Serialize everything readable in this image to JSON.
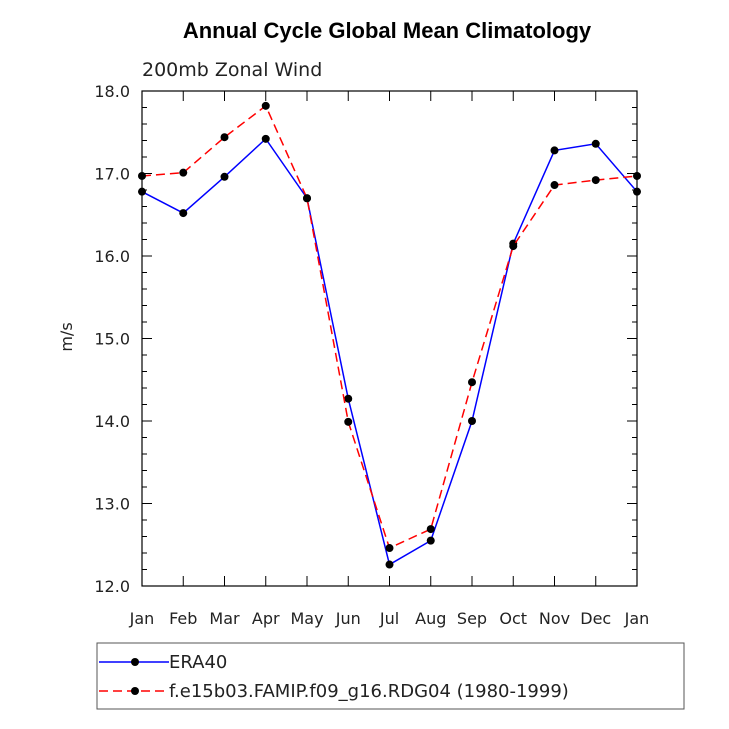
{
  "chart_data": {
    "type": "line",
    "title": "Annual Cycle Global Mean Climatology",
    "subtitle": "200mb Zonal Wind",
    "xlabel": "",
    "ylabel": "m/s",
    "categories": [
      "Jan",
      "Feb",
      "Mar",
      "Apr",
      "May",
      "Jun",
      "Jul",
      "Aug",
      "Sep",
      "Oct",
      "Nov",
      "Dec",
      "Jan"
    ],
    "ylim": [
      12.0,
      18.0
    ],
    "yticks": [
      "12.0",
      "13.0",
      "14.0",
      "15.0",
      "16.0",
      "17.0",
      "18.0"
    ],
    "grid": false,
    "legend_placement": "bottom",
    "series": [
      {
        "name": "ERA40",
        "color": "#0000ff",
        "style": "solid",
        "values": [
          16.78,
          16.52,
          16.96,
          17.42,
          16.7,
          14.27,
          12.26,
          12.55,
          14.0,
          16.15,
          17.28,
          17.36,
          16.78
        ]
      },
      {
        "name": "f.e15b03.FAMIP.f09_g16.RDG04 (1980-1999)",
        "color": "#ff0000",
        "style": "dashed",
        "values": [
          16.97,
          17.01,
          17.44,
          17.82,
          16.7,
          13.99,
          12.46,
          12.69,
          14.47,
          16.12,
          16.86,
          16.92,
          16.97
        ]
      }
    ]
  }
}
